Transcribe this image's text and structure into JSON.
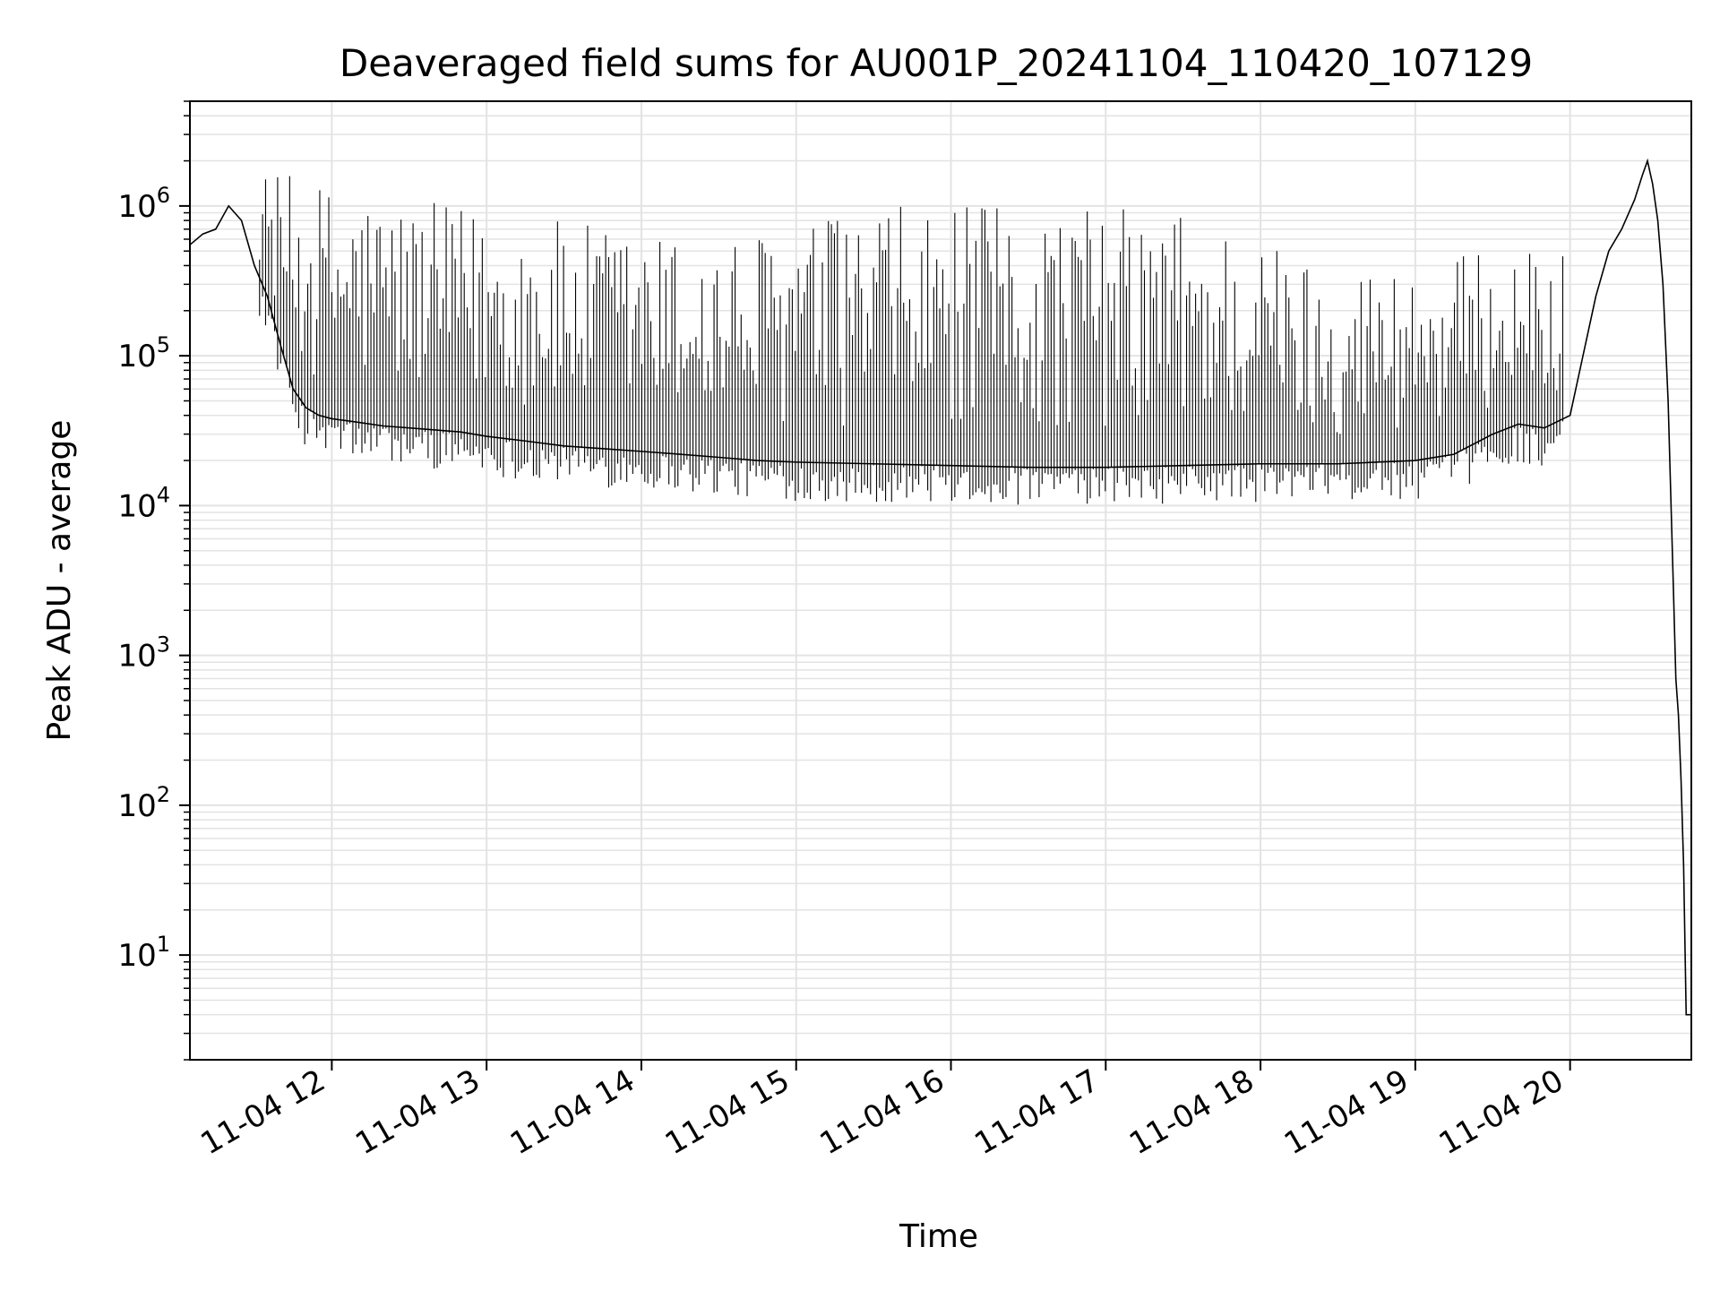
{
  "chart_data": {
    "type": "line",
    "title": "Deaveraged field sums for AU001P_20241104_110420_107129",
    "xlabel": "Time",
    "ylabel": "Peak ADU - average",
    "yscale": "log",
    "ylim": [
      2,
      5000000
    ],
    "xlim": [
      "2024-11-04T11:05:00",
      "2024-11-04T20:47:00"
    ],
    "grid": true,
    "line_color": "#000000",
    "grid_color": "#e3e3e3",
    "x_ticks": [
      {
        "value": "2024-11-04T12:00:00",
        "label": "11-04 12"
      },
      {
        "value": "2024-11-04T13:00:00",
        "label": "11-04 13"
      },
      {
        "value": "2024-11-04T14:00:00",
        "label": "11-04 14"
      },
      {
        "value": "2024-11-04T15:00:00",
        "label": "11-04 15"
      },
      {
        "value": "2024-11-04T16:00:00",
        "label": "11-04 16"
      },
      {
        "value": "2024-11-04T17:00:00",
        "label": "11-04 17"
      },
      {
        "value": "2024-11-04T18:00:00",
        "label": "11-04 18"
      },
      {
        "value": "2024-11-04T19:00:00",
        "label": "11-04 19"
      },
      {
        "value": "2024-11-04T20:00:00",
        "label": "11-04 20"
      }
    ],
    "y_ticks": [
      {
        "value": 10,
        "base": "10",
        "exp": "1"
      },
      {
        "value": 100,
        "base": "10",
        "exp": "2"
      },
      {
        "value": 1000,
        "base": "10",
        "exp": "3"
      },
      {
        "value": 10000,
        "base": "10",
        "exp": "4"
      },
      {
        "value": 100000,
        "base": "10",
        "exp": "5"
      },
      {
        "value": 1000000,
        "base": "10",
        "exp": "6"
      }
    ],
    "series": [
      {
        "values_note": "",
        "x": [
          "2024-11-04T11:05:00",
          "2024-11-04T11:10:00",
          "2024-11-04T11:15:00",
          "2024-11-04T11:20:00",
          "2024-11-04T11:25:00",
          "2024-11-04T11:30:00",
          "2024-11-04T11:35:00",
          "2024-11-04T11:40:00",
          "2024-11-04T11:45:00",
          "2024-11-04T11:50:00",
          "2024-11-04T11:55:00",
          "2024-11-04T12:00:00",
          "2024-11-04T12:10:00",
          "2024-11-04T12:20:00",
          "2024-11-04T12:30:00",
          "2024-11-04T12:40:00",
          "2024-11-04T12:50:00",
          "2024-11-04T13:00:00",
          "2024-11-04T13:15:00",
          "2024-11-04T13:30:00",
          "2024-11-04T13:45:00",
          "2024-11-04T14:00:00",
          "2024-11-04T14:15:00",
          "2024-11-04T14:30:00",
          "2024-11-04T14:45:00",
          "2024-11-04T15:00:00",
          "2024-11-04T15:30:00",
          "2024-11-04T16:00:00",
          "2024-11-04T16:30:00",
          "2024-11-04T17:00:00",
          "2024-11-04T17:30:00",
          "2024-11-04T18:00:00",
          "2024-11-04T18:30:00",
          "2024-11-04T19:00:00",
          "2024-11-04T19:15:00",
          "2024-11-04T19:30:00",
          "2024-11-04T19:40:00",
          "2024-11-04T19:50:00",
          "2024-11-04T20:00:00",
          "2024-11-04T20:05:00",
          "2024-11-04T20:10:00",
          "2024-11-04T20:15:00",
          "2024-11-04T20:20:00",
          "2024-11-04T20:25:00",
          "2024-11-04T20:28:00",
          "2024-11-04T20:30:00",
          "2024-11-04T20:32:00",
          "2024-11-04T20:34:00",
          "2024-11-04T20:36:00",
          "2024-11-04T20:38:00",
          "2024-11-04T20:40:00",
          "2024-11-04T20:41:00",
          "2024-11-04T20:42:00",
          "2024-11-04T20:43:00",
          "2024-11-04T20:44:00",
          "2024-11-04T20:45:00",
          "2024-11-04T20:47:00"
        ],
        "y": [
          550000,
          650000,
          700000,
          1000000,
          800000,
          400000,
          250000,
          120000,
          60000,
          45000,
          40000,
          38000,
          36000,
          34000,
          33000,
          32000,
          31000,
          29000,
          27000,
          25000,
          24000,
          23000,
          22000,
          21000,
          20000,
          19500,
          19000,
          18500,
          18000,
          18000,
          18500,
          19000,
          19000,
          20000,
          22000,
          30000,
          35000,
          33000,
          40000,
          100000,
          250000,
          500000,
          700000,
          1100000,
          1600000,
          2000000,
          1400000,
          800000,
          300000,
          50000,
          3000,
          700,
          400,
          150,
          40,
          4,
          4
        ],
        "spikes": {
          "enabled": true,
          "max_envelope": [
            {
              "x": "2024-11-04T11:30:00",
              "y": 1800000
            },
            {
              "x": "2024-11-04T12:30:00",
              "y": 1100000
            },
            {
              "x": "2024-11-04T13:30:00",
              "y": 800000
            },
            {
              "x": "2024-11-04T14:30:00",
              "y": 600000
            },
            {
              "x": "2024-11-04T15:30:00",
              "y": 1000000
            },
            {
              "x": "2024-11-04T16:30:00",
              "y": 1000000
            },
            {
              "x": "2024-11-04T17:30:00",
              "y": 1000000
            },
            {
              "x": "2024-11-04T18:30:00",
              "y": 400000
            },
            {
              "x": "2024-11-04T19:30:00",
              "y": 500000
            }
          ]
        }
      }
    ]
  }
}
